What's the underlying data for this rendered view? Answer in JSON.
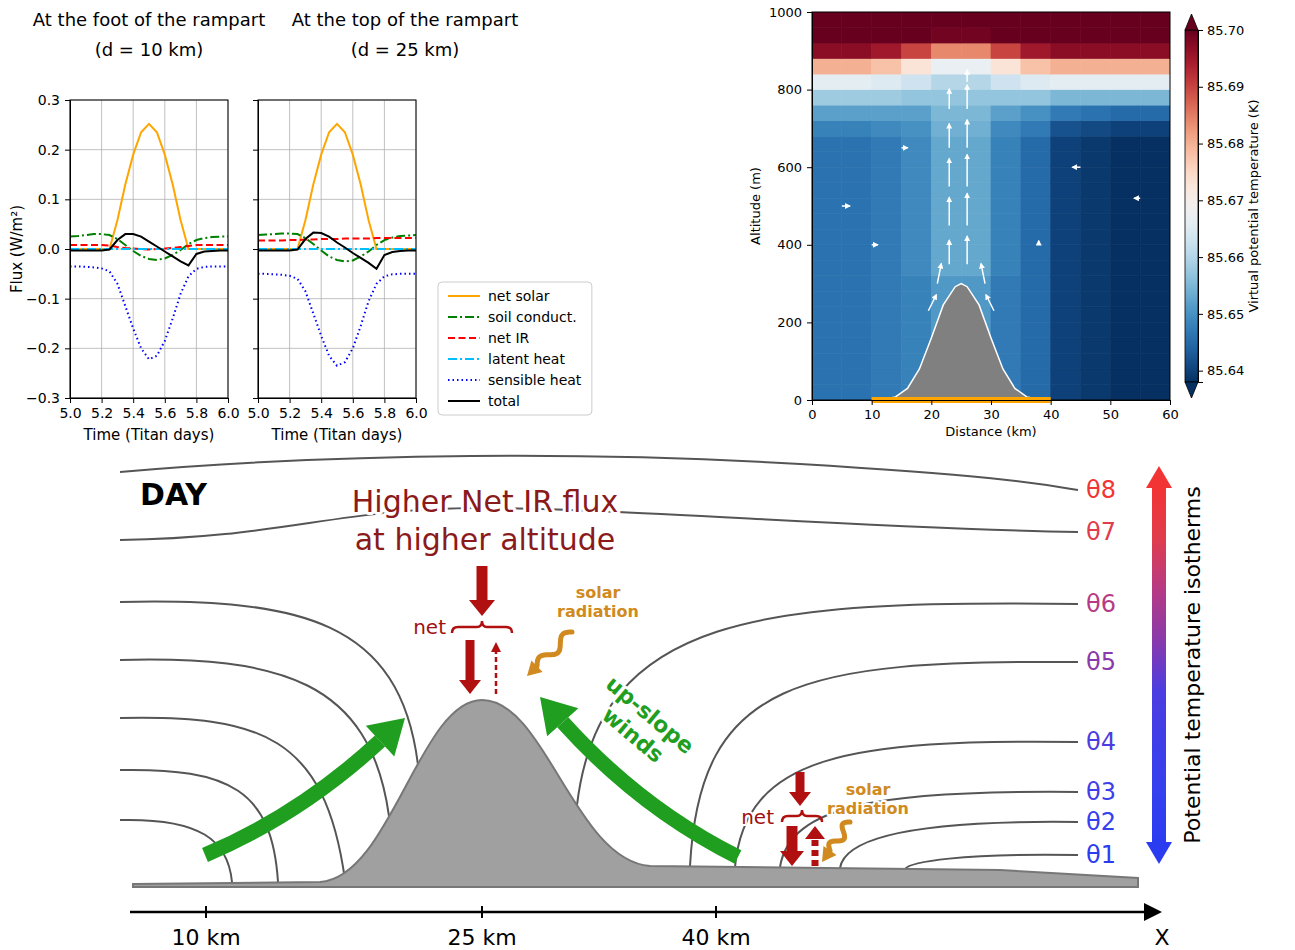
{
  "chart_data": [
    {
      "type": "line",
      "title": "At the foot of the rampart",
      "subtitle": "(d = 10 km)",
      "xlabel": "Time (Titan days)",
      "ylabel": "Flux (W/m²)",
      "x": [
        5,
        5.05,
        5.1,
        5.15,
        5.2,
        5.25,
        5.3,
        5.35,
        5.4,
        5.45,
        5.5,
        5.55,
        5.6,
        5.65,
        5.7,
        5.75,
        5.8,
        5.85,
        5.9,
        5.95,
        6
      ],
      "xlim": [
        5,
        6
      ],
      "ylim": [
        -0.3,
        0.3
      ],
      "xticks": [
        {
          "value": 5,
          "label": "5.0"
        },
        5.2,
        5.4,
        5.6,
        5.8,
        {
          "value": 6,
          "label": "6.0"
        }
      ],
      "yticks": [
        {
          "value": -0.3,
          "label": "−0.3"
        },
        {
          "value": -0.2,
          "label": "−0.2"
        },
        {
          "value": -0.1,
          "label": "−0.1"
        },
        {
          "value": 0,
          "label": "0.0"
        },
        0.1,
        0.2,
        0.3
      ],
      "grid": true,
      "series": [
        {
          "name": "net solar",
          "color": "#ffa500",
          "line_style": "solid",
          "values": [
            0,
            0,
            0,
            0,
            0,
            0,
            0.058,
            0.13,
            0.19,
            0.235,
            0.252,
            0.235,
            0.19,
            0.13,
            0.058,
            0,
            0,
            0,
            0,
            0,
            0
          ]
        },
        {
          "name": "soil conduct.",
          "color": "#008000",
          "line_style": "dashdot",
          "values": [
            0.025,
            0.026,
            0.028,
            0.03,
            0.03,
            0.028,
            0.02,
            0.008,
            -0.004,
            -0.014,
            -0.02,
            -0.022,
            -0.019,
            -0.012,
            -0.002,
            0.01,
            0.018,
            0.022,
            0.024,
            0.025,
            0.025
          ]
        },
        {
          "name": "net IR",
          "color": "#ff0000",
          "line_style": "dashed",
          "values": [
            0.008,
            0.008,
            0.008,
            0.008,
            0.008,
            0.007,
            0.004,
            0.002,
            0.001,
            0,
            -0.001,
            0,
            0.001,
            0.002,
            0.004,
            0.006,
            0.008,
            0.008,
            0.008,
            0.008,
            0.008
          ]
        },
        {
          "name": "latent heat",
          "color": "#00bfff",
          "line_style": "dashdot",
          "values": [
            0,
            0,
            0,
            0,
            0,
            0,
            0,
            0,
            0,
            0,
            0,
            0,
            0,
            0,
            0,
            0,
            0,
            0,
            0,
            0,
            0
          ]
        },
        {
          "name": "sensible heat",
          "color": "#0000ff",
          "line_style": "dotted",
          "values": [
            -0.035,
            -0.035,
            -0.036,
            -0.037,
            -0.039,
            -0.045,
            -0.07,
            -0.115,
            -0.16,
            -0.2,
            -0.222,
            -0.215,
            -0.185,
            -0.14,
            -0.09,
            -0.055,
            -0.04,
            -0.036,
            -0.035,
            -0.035,
            -0.035
          ]
        },
        {
          "name": "total",
          "color": "#000000",
          "line_style": "solid",
          "values": [
            -0.003,
            -0.003,
            -0.003,
            -0.003,
            -0.003,
            -0.001,
            0.018,
            0.03,
            0.03,
            0.025,
            0.015,
            0.005,
            -0.005,
            -0.015,
            -0.025,
            -0.033,
            -0.01,
            -0.005,
            -0.004,
            -0.003,
            -0.003
          ]
        }
      ]
    },
    {
      "type": "line",
      "title": "At the top of the rampart",
      "subtitle": "(d = 25 km)",
      "xlabel": "Time (Titan days)",
      "x": [
        5,
        5.05,
        5.1,
        5.15,
        5.2,
        5.25,
        5.3,
        5.35,
        5.4,
        5.45,
        5.5,
        5.55,
        5.6,
        5.65,
        5.7,
        5.75,
        5.8,
        5.85,
        5.9,
        5.95,
        6
      ],
      "xlim": [
        5,
        6
      ],
      "ylim": [
        -0.3,
        0.3
      ],
      "xticks": [
        {
          "value": 5,
          "label": "5.0"
        },
        5.2,
        5.4,
        5.6,
        5.8,
        {
          "value": 6,
          "label": "6.0"
        }
      ],
      "yticks": [
        -0.3,
        -0.2,
        -0.1,
        0,
        0.1,
        0.2,
        0.3
      ],
      "tick_labels": "x",
      "grid": true,
      "legend": "right",
      "series": [
        {
          "name": "net solar",
          "color": "#ffa500",
          "line_style": "solid",
          "values": [
            0,
            0,
            0,
            0,
            0,
            0,
            0.058,
            0.13,
            0.19,
            0.235,
            0.252,
            0.235,
            0.19,
            0.13,
            0.058,
            0,
            0,
            0,
            0,
            0,
            0
          ]
        },
        {
          "name": "soil conduct.",
          "color": "#008000",
          "line_style": "dashdot",
          "values": [
            0.028,
            0.029,
            0.03,
            0.031,
            0.031,
            0.03,
            0.022,
            0.01,
            -0.003,
            -0.015,
            -0.022,
            -0.025,
            -0.023,
            -0.015,
            -0.005,
            0.008,
            0.018,
            0.023,
            0.026,
            0.027,
            0.028
          ]
        },
        {
          "name": "net IR",
          "color": "#ff0000",
          "line_style": "dashed",
          "values": [
            0.017,
            0.017,
            0.017,
            0.017,
            0.018,
            0.018,
            0.019,
            0.019,
            0.02,
            0.02,
            0.02,
            0.021,
            0.021,
            0.021,
            0.021,
            0.022,
            0.022,
            0.022,
            0.022,
            0.022,
            0.022
          ]
        },
        {
          "name": "latent heat",
          "color": "#00bfff",
          "line_style": "dashdot",
          "values": [
            0,
            0,
            0,
            0,
            0,
            0,
            0,
            0,
            0,
            0,
            0,
            0,
            0,
            0,
            0,
            0,
            0,
            0,
            0,
            0,
            0
          ]
        },
        {
          "name": "sensible heat",
          "color": "#0000ff",
          "line_style": "dotted",
          "values": [
            -0.05,
            -0.05,
            -0.051,
            -0.052,
            -0.054,
            -0.06,
            -0.085,
            -0.13,
            -0.175,
            -0.215,
            -0.235,
            -0.228,
            -0.2,
            -0.155,
            -0.105,
            -0.07,
            -0.055,
            -0.051,
            -0.05,
            -0.05,
            -0.05
          ]
        },
        {
          "name": "total",
          "color": "#000000",
          "line_style": "solid",
          "values": [
            -0.003,
            -0.003,
            -0.003,
            -0.003,
            -0.003,
            -0.001,
            0.02,
            0.033,
            0.032,
            0.025,
            0.013,
            0.003,
            -0.008,
            -0.018,
            -0.028,
            -0.04,
            -0.012,
            -0.006,
            -0.004,
            -0.003,
            -0.003
          ]
        }
      ]
    },
    {
      "type": "heatmap",
      "xlabel": "Distance (km)",
      "ylabel": "Altitude (m)",
      "xlim": [
        0,
        60
      ],
      "ylim": [
        0,
        1000
      ],
      "xticks": [
        0,
        10,
        20,
        30,
        40,
        50,
        60
      ],
      "yticks": [
        0,
        200,
        400,
        600,
        800,
        1000
      ],
      "x_bins": [
        0,
        5,
        10,
        15,
        20,
        25,
        30,
        35,
        40,
        45,
        50,
        55,
        60
      ],
      "y_bins": [
        0,
        40,
        80,
        120,
        160,
        200,
        240,
        280,
        320,
        360,
        400,
        440,
        480,
        520,
        560,
        600,
        640,
        680,
        720,
        760,
        800,
        840,
        880,
        920,
        960,
        1000
      ],
      "values": [
        [
          85.646,
          85.646,
          85.647,
          85.648,
          85.651,
          85.651,
          85.647,
          85.645,
          85.64,
          85.639,
          85.638,
          85.638
        ],
        [
          85.646,
          85.646,
          85.647,
          85.648,
          85.651,
          85.651,
          85.647,
          85.645,
          85.64,
          85.639,
          85.638,
          85.638
        ],
        [
          85.646,
          85.646,
          85.647,
          85.648,
          85.651,
          85.651,
          85.647,
          85.645,
          85.64,
          85.639,
          85.638,
          85.638
        ],
        [
          85.646,
          85.646,
          85.647,
          85.648,
          85.651,
          85.651,
          85.647,
          85.645,
          85.64,
          85.639,
          85.638,
          85.638
        ],
        [
          85.646,
          85.646,
          85.647,
          85.648,
          85.651,
          85.651,
          85.647,
          85.645,
          85.64,
          85.639,
          85.638,
          85.638
        ],
        [
          85.646,
          85.646,
          85.647,
          85.648,
          85.651,
          85.651,
          85.647,
          85.645,
          85.64,
          85.639,
          85.638,
          85.638
        ],
        [
          85.646,
          85.646,
          85.647,
          85.648,
          85.651,
          85.651,
          85.647,
          85.645,
          85.64,
          85.639,
          85.638,
          85.638
        ],
        [
          85.646,
          85.646,
          85.647,
          85.648,
          85.651,
          85.651,
          85.647,
          85.645,
          85.64,
          85.639,
          85.638,
          85.638
        ],
        [
          85.646,
          85.646,
          85.647,
          85.649,
          85.653,
          85.653,
          85.648,
          85.645,
          85.64,
          85.639,
          85.638,
          85.638
        ],
        [
          85.646,
          85.646,
          85.647,
          85.649,
          85.653,
          85.653,
          85.648,
          85.645,
          85.64,
          85.639,
          85.638,
          85.638
        ],
        [
          85.646,
          85.646,
          85.647,
          85.649,
          85.653,
          85.653,
          85.648,
          85.645,
          85.64,
          85.639,
          85.638,
          85.638
        ],
        [
          85.646,
          85.646,
          85.647,
          85.649,
          85.653,
          85.653,
          85.648,
          85.645,
          85.64,
          85.639,
          85.638,
          85.638
        ],
        [
          85.646,
          85.646,
          85.647,
          85.649,
          85.653,
          85.653,
          85.648,
          85.645,
          85.64,
          85.639,
          85.638,
          85.638
        ],
        [
          85.646,
          85.646,
          85.647,
          85.649,
          85.653,
          85.653,
          85.648,
          85.645,
          85.64,
          85.639,
          85.638,
          85.638
        ],
        [
          85.646,
          85.646,
          85.647,
          85.649,
          85.653,
          85.653,
          85.648,
          85.645,
          85.64,
          85.639,
          85.638,
          85.638
        ],
        [
          85.646,
          85.646,
          85.647,
          85.649,
          85.653,
          85.653,
          85.648,
          85.645,
          85.64,
          85.639,
          85.638,
          85.638
        ],
        [
          85.646,
          85.646,
          85.647,
          85.649,
          85.653,
          85.653,
          85.648,
          85.645,
          85.64,
          85.639,
          85.638,
          85.638
        ],
        [
          85.648,
          85.648,
          85.649,
          85.65,
          85.654,
          85.654,
          85.649,
          85.647,
          85.642,
          85.641,
          85.64,
          85.64
        ],
        [
          85.652,
          85.652,
          85.652,
          85.652,
          85.655,
          85.655,
          85.652,
          85.65,
          85.647,
          85.646,
          85.645,
          85.645
        ],
        [
          85.658,
          85.658,
          85.658,
          85.657,
          85.657,
          85.657,
          85.657,
          85.657,
          85.655,
          85.655,
          85.655,
          85.655
        ],
        [
          85.666,
          85.666,
          85.665,
          85.663,
          85.66,
          85.66,
          85.663,
          85.665,
          85.666,
          85.666,
          85.666,
          85.666
        ],
        [
          85.68,
          85.68,
          85.678,
          85.673,
          85.667,
          85.667,
          85.673,
          85.678,
          85.68,
          85.68,
          85.68,
          85.68
        ],
        [
          85.697,
          85.697,
          85.695,
          85.69,
          85.684,
          85.684,
          85.69,
          85.695,
          85.697,
          85.697,
          85.697,
          85.697
        ],
        [
          85.704,
          85.704,
          85.703,
          85.702,
          85.699,
          85.699,
          85.702,
          85.703,
          85.704,
          85.704,
          85.704,
          85.704
        ],
        [
          85.706,
          85.706,
          85.706,
          85.706,
          85.706,
          85.706,
          85.706,
          85.706,
          85.706,
          85.706,
          85.706,
          85.706
        ]
      ],
      "colorbar_label": "Virtual potential temperature (K)",
      "colorbar_range": [
        85.638,
        85.7
      ],
      "colorbar_ticks": [
        85.64,
        85.65,
        85.66,
        85.67,
        85.68,
        85.69,
        {
          "value": 85.7,
          "label": "85.70"
        }
      ],
      "terrain": {
        "x": [
          10,
          12,
          14,
          16,
          18,
          20,
          22,
          24,
          25,
          26,
          28,
          30,
          32,
          34,
          36,
          38,
          40
        ],
        "z": [
          0,
          2,
          8,
          30,
          80,
          160,
          245,
          292,
          300,
          292,
          245,
          160,
          80,
          30,
          8,
          2,
          0
        ]
      },
      "wind": {
        "x": [
          23,
          23,
          23,
          23,
          23,
          26,
          26,
          26,
          26,
          26,
          26,
          29,
          30.5,
          19.5,
          21,
          5,
          15,
          45,
          55,
          38,
          10
        ],
        "z": [
          350,
          450,
          550,
          650,
          750,
          350,
          450,
          550,
          650,
          750,
          820,
          300,
          230,
          230,
          300,
          500,
          650,
          600,
          520,
          400,
          400
        ],
        "u": [
          0,
          0,
          0,
          0,
          0,
          0,
          0,
          0,
          0,
          0,
          0,
          -0.1,
          -0.2,
          0.2,
          0.1,
          0.2,
          0.15,
          -0.2,
          -0.15,
          0,
          0.15
        ],
        "w": [
          0.6,
          0.7,
          0.7,
          0.6,
          0.5,
          0.7,
          0.8,
          0.8,
          0.7,
          0.6,
          0.3,
          0.5,
          0.4,
          0.4,
          0.5,
          0,
          0,
          0,
          0,
          0.1,
          0
        ]
      },
      "span": {
        "x": [
          10,
          40
        ],
        "color": "#ffa500"
      }
    }
  ],
  "diagram": {
    "title": "DAY",
    "ir_note": [
      "Higher Net IR flux",
      "at higher altitude"
    ],
    "flux_labels": [
      "net",
      "net"
    ],
    "solar_labels": [
      [
        "solar",
        "radiation"
      ],
      [
        "solar",
        "radiation"
      ]
    ],
    "wind_label": [
      "up-slope",
      "winds"
    ],
    "isotherms": [
      {
        "label": "θ1",
        "color": "#2b3cf0"
      },
      {
        "label": "θ2",
        "color": "#3540ee"
      },
      {
        "label": "θ3",
        "color": "#3f3ee8"
      },
      {
        "label": "θ4",
        "color": "#4c3de0"
      },
      {
        "label": "θ5",
        "color": "#8a3aaa"
      },
      {
        "label": "θ6",
        "color": "#b63a84"
      },
      {
        "label": "θ7",
        "color": "#e03c4c"
      },
      {
        "label": "θ8",
        "color": "#f23434"
      }
    ],
    "scale_label": "Potential temperature isotherms",
    "axis": {
      "ticks": [
        "10 km",
        "25 km",
        "40 km"
      ],
      "label": "X"
    }
  }
}
